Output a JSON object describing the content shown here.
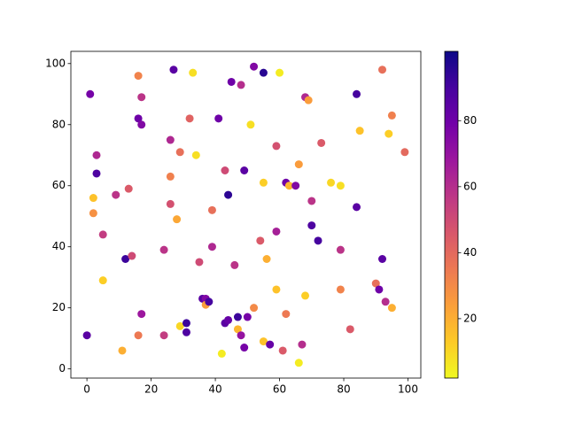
{
  "chart_data": {
    "type": "scatter",
    "x": [
      0,
      1,
      2,
      2,
      3,
      3,
      5,
      5,
      9,
      11,
      12,
      13,
      14,
      16,
      16,
      16,
      17,
      17,
      17,
      24,
      24,
      26,
      26,
      26,
      27,
      28,
      29,
      29,
      31,
      31,
      32,
      33,
      34,
      35,
      36,
      37,
      37,
      38,
      39,
      39,
      41,
      42,
      43,
      43,
      44,
      44,
      45,
      46,
      47,
      47,
      48,
      48,
      49,
      49,
      50,
      51,
      52,
      52,
      54,
      55,
      55,
      55,
      56,
      57,
      59,
      59,
      59,
      60,
      61,
      62,
      62,
      63,
      65,
      66,
      66,
      67,
      68,
      68,
      69,
      70,
      70,
      72,
      73,
      76,
      79,
      79,
      79,
      82,
      84,
      84,
      85,
      90,
      91,
      92,
      92,
      93,
      94,
      95,
      95,
      99
    ],
    "values": [
      11,
      90,
      56,
      51,
      70,
      64,
      44,
      29,
      57,
      6,
      36,
      59,
      37,
      96,
      82,
      11,
      89,
      80,
      18,
      39,
      11,
      75,
      63,
      54,
      98,
      49,
      71,
      14,
      15,
      12,
      82,
      97,
      70,
      35,
      23,
      23,
      21,
      22,
      52,
      40,
      82,
      5,
      65,
      15,
      57,
      16,
      94,
      34,
      17,
      13,
      93,
      11,
      65,
      7,
      17,
      80,
      99,
      20,
      42,
      97,
      61,
      9,
      36,
      8,
      73,
      45,
      26,
      97,
      6,
      61,
      18,
      60,
      60,
      67,
      2,
      8,
      89,
      24,
      88,
      55,
      47,
      42,
      74,
      61,
      60,
      39,
      26,
      13,
      90,
      53,
      78,
      28,
      26,
      98,
      36,
      22,
      77,
      83,
      20,
      71
    ],
    "c": [
      85,
      78,
      15,
      28,
      62,
      88,
      55,
      12,
      58,
      20,
      92,
      45,
      50,
      32,
      80,
      35,
      58,
      75,
      68,
      58,
      55,
      62,
      33,
      48,
      85,
      22,
      38,
      10,
      92,
      88,
      42,
      8,
      8,
      50,
      85,
      75,
      25,
      90,
      38,
      62,
      80,
      5,
      50,
      85,
      95,
      82,
      80,
      58,
      92,
      18,
      60,
      70,
      85,
      78,
      78,
      8,
      75,
      30,
      45,
      96,
      12,
      15,
      20,
      82,
      48,
      65,
      15,
      5,
      45,
      80,
      35,
      18,
      75,
      25,
      5,
      60,
      62,
      12,
      25,
      58,
      88,
      90,
      45,
      10,
      8,
      58,
      32,
      45,
      90,
      85,
      15,
      38,
      80,
      38,
      85,
      60,
      12,
      33,
      20,
      40
    ],
    "colormap": "plasma_r",
    "xlim": [
      -5,
      104
    ],
    "ylim": [
      -3,
      104
    ],
    "clim": [
      2,
      101
    ],
    "xticks": [
      0,
      20,
      40,
      60,
      80,
      100
    ],
    "yticks": [
      0,
      20,
      40,
      60,
      80,
      100
    ],
    "cticks": [
      20,
      40,
      60,
      80
    ]
  }
}
